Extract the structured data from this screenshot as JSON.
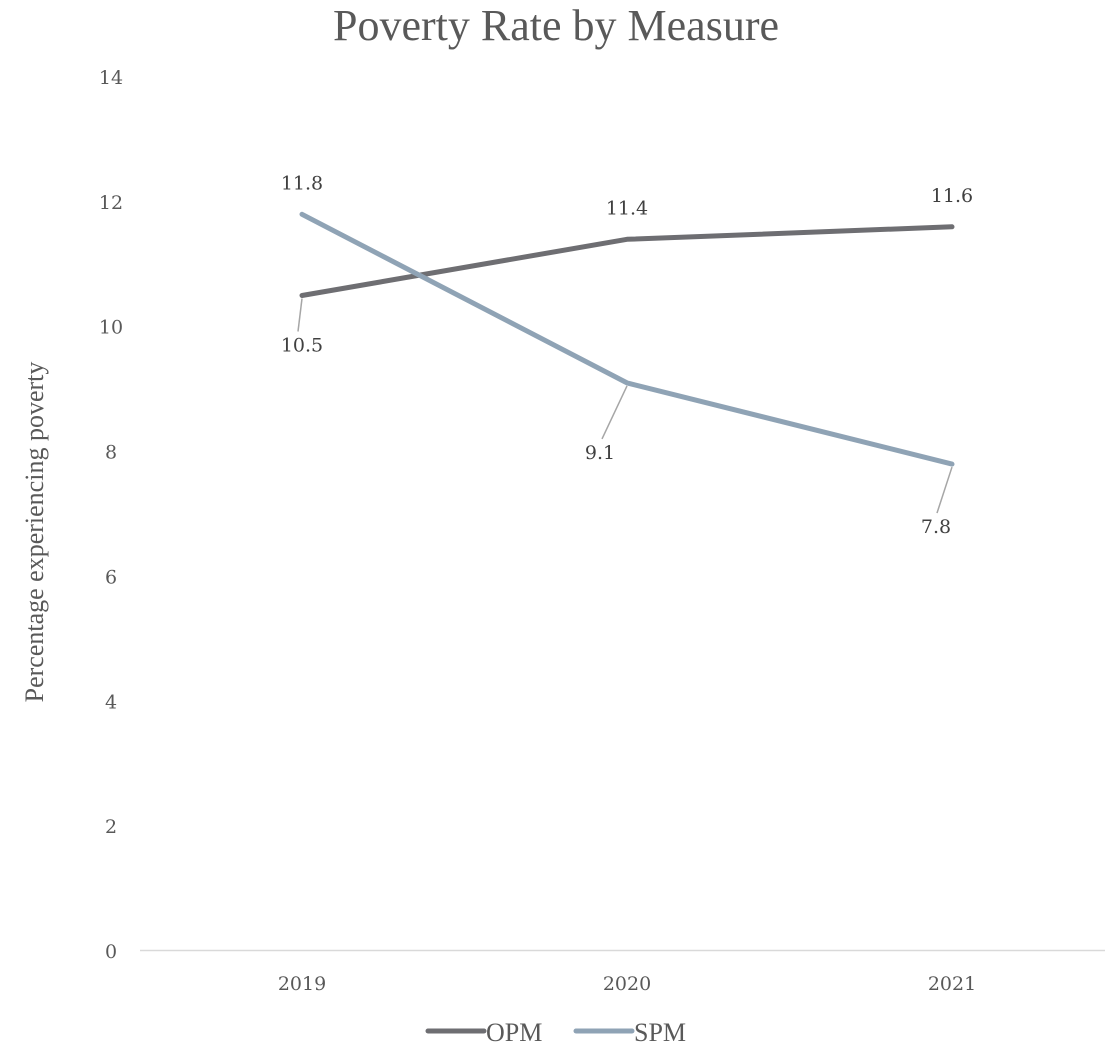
{
  "chart_data": {
    "type": "line",
    "title": "Poverty Rate by Measure",
    "xlabel": "",
    "ylabel": "Percentage experiencing poverty",
    "categories": [
      "2019",
      "2020",
      "2021"
    ],
    "ylim": [
      0,
      14
    ],
    "yticks": [
      "0",
      "2",
      "4",
      "6",
      "8",
      "10",
      "12",
      "14"
    ],
    "grid": false,
    "legend_position": "bottom",
    "series": [
      {
        "name": "OPM",
        "values": [
          10.5,
          11.4,
          11.6
        ],
        "color": "#6e6e72",
        "labels": [
          "10.5",
          "11.4",
          "11.6"
        ]
      },
      {
        "name": "SPM",
        "values": [
          11.8,
          9.1,
          7.8
        ],
        "color": "#8fa3b5",
        "labels": [
          "11.8",
          "9.1",
          "7.8"
        ]
      }
    ]
  }
}
